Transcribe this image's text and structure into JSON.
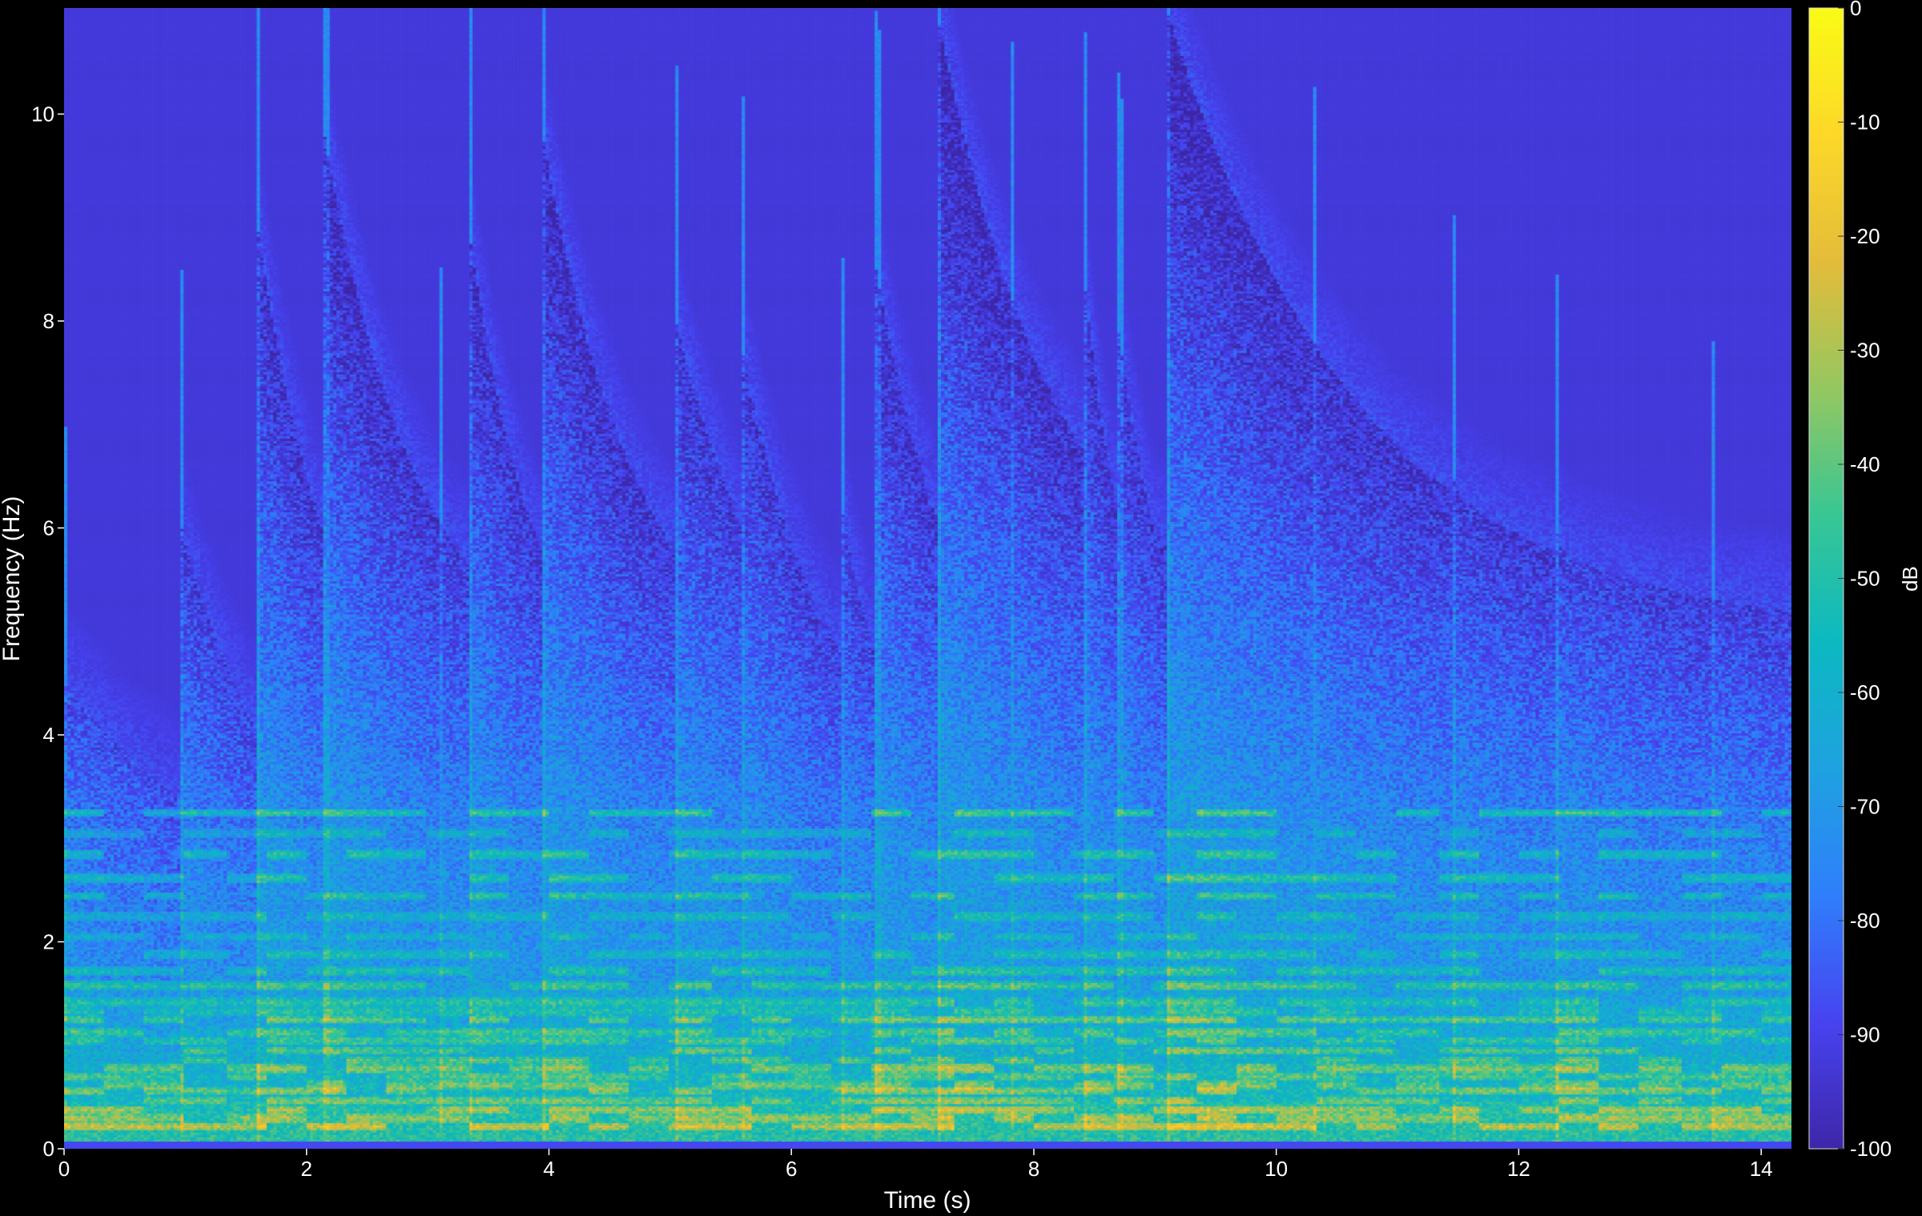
{
  "chart_data": {
    "type": "heatmap",
    "title": "",
    "xlabel": "Time (s)",
    "ylabel": "Frequency (Hz)",
    "xlim": [
      0,
      14.25
    ],
    "ylim": [
      0,
      11.025
    ],
    "x_ticks": [
      0,
      2,
      4,
      6,
      8,
      10,
      12,
      14
    ],
    "y_ticks": [
      0,
      2,
      4,
      6,
      8,
      10
    ],
    "colorbar": {
      "label": "dB",
      "range": [
        -100,
        0
      ],
      "ticks": [
        0,
        -10,
        -20,
        -30,
        -40,
        -50,
        -60,
        -70,
        -80,
        -90,
        -100
      ],
      "colormap": [
        "#3e26a8",
        "#4743f0",
        "#2f7ffb",
        "#1ea2e0",
        "#0cb9c1",
        "#38c694",
        "#95c760",
        "#e4bc3a",
        "#fdd828",
        "#f9fb15"
      ]
    },
    "background_db": -92,
    "onsets": [
      {
        "t": 0.0,
        "top": 4.5,
        "s": 0.5,
        "d": 1.6
      },
      {
        "t": 0.95,
        "top": 6.1,
        "s": 0.45,
        "d": 0.7
      },
      {
        "t": 1.6,
        "top": 8.9,
        "s": 0.7,
        "d": 0.6
      },
      {
        "t": 2.15,
        "top": 9.8,
        "s": 0.65,
        "d": 0.8
      },
      {
        "t": 3.1,
        "top": 5.5,
        "s": 0.55,
        "d": 0.4
      },
      {
        "t": 3.35,
        "top": 8.8,
        "s": 0.6,
        "d": 0.6
      },
      {
        "t": 3.95,
        "top": 9.8,
        "s": 0.65,
        "d": 0.8
      },
      {
        "t": 5.05,
        "top": 8.0,
        "s": 0.65,
        "d": 0.9
      },
      {
        "t": 5.6,
        "top": 7.7,
        "s": 0.55,
        "d": 0.7
      },
      {
        "t": 6.4,
        "top": 6.3,
        "s": 0.55,
        "d": 0.5
      },
      {
        "t": 6.7,
        "top": 8.5,
        "s": 0.65,
        "d": 0.7
      },
      {
        "t": 7.2,
        "top": 11.0,
        "s": 0.8,
        "d": 1.0
      },
      {
        "t": 7.8,
        "top": 7.6,
        "s": 0.6,
        "d": 0.6
      },
      {
        "t": 8.4,
        "top": 8.6,
        "s": 0.7,
        "d": 0.4
      },
      {
        "t": 8.7,
        "top": 7.9,
        "s": 0.65,
        "d": 0.5
      },
      {
        "t": 9.1,
        "top": 11.0,
        "s": 0.85,
        "d": 1.6
      },
      {
        "t": 10.3,
        "top": 5.5,
        "s": 0.5,
        "d": 0.8
      },
      {
        "t": 11.45,
        "top": 6.6,
        "s": 0.6,
        "d": 0.8
      },
      {
        "t": 12.3,
        "top": 6.0,
        "s": 0.7,
        "d": 1.2
      },
      {
        "t": 13.6,
        "top": 5.0,
        "s": 0.55,
        "d": 0.7
      }
    ],
    "harmonic_lines_hz": [
      0.22,
      0.3,
      0.38,
      0.47,
      0.56,
      0.62,
      0.7,
      0.78,
      0.86,
      0.95,
      1.05,
      1.13,
      1.25,
      1.33,
      1.42,
      1.58,
      1.72,
      1.88,
      2.05,
      2.25,
      2.45,
      2.62,
      2.85,
      3.05,
      3.25
    ]
  }
}
